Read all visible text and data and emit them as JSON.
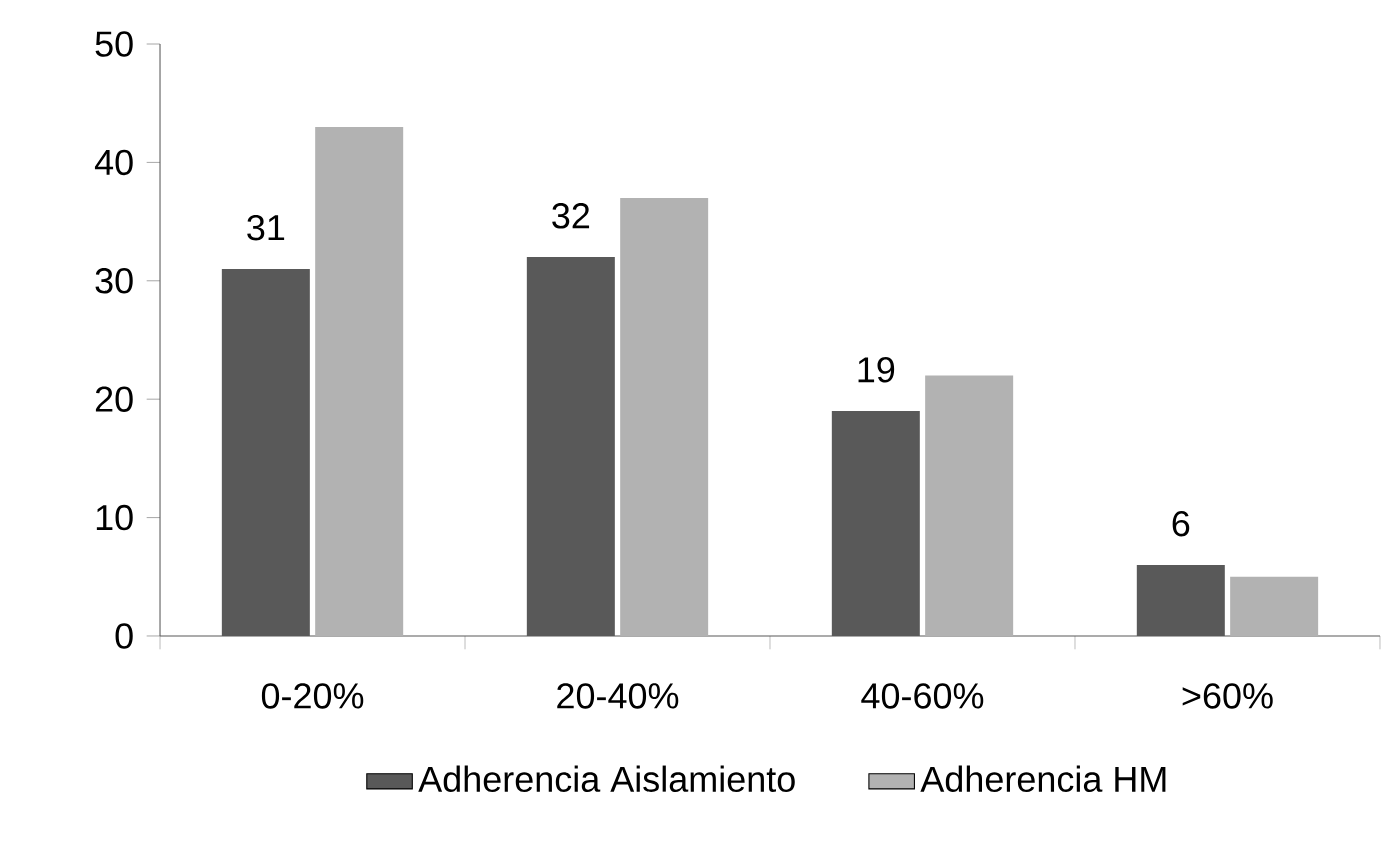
{
  "chart_data": {
    "type": "bar",
    "categories": [
      "0-20%",
      "20-40%",
      "40-60%",
      ">60%"
    ],
    "series": [
      {
        "name": "Adherencia Aislamiento",
        "color": "#595959",
        "values": [
          31,
          32,
          19,
          6
        ],
        "value_labels": [
          "31",
          "32",
          "19",
          "6"
        ]
      },
      {
        "name": "Adherencia HM",
        "color": "#b2b2b2",
        "values": [
          43,
          37,
          22,
          5
        ]
      }
    ],
    "ylim": [
      0,
      50
    ],
    "yticks": [
      0,
      10,
      20,
      30,
      40,
      50
    ],
    "legend": "bottom"
  }
}
